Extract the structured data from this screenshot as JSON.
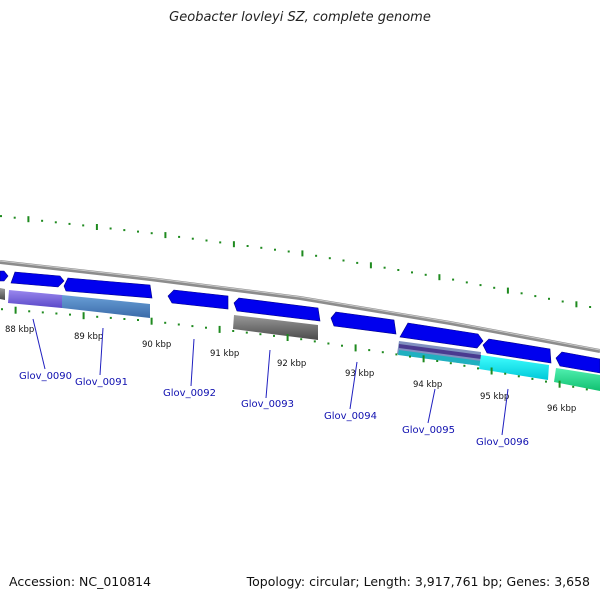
{
  "title": "Geobacter lovleyi SZ, complete genome",
  "footer": {
    "accession": "Accession: NC_010814",
    "topology": "Topology: circular; Length: 3,917,761 bp; Genes: 3,658"
  },
  "colors": {
    "backbone": "#909090",
    "tick": "#1f8a1f",
    "gene_forward": "#0000ee",
    "label": "#1010b0",
    "leader": "#2020c0"
  },
  "scale_labels": [
    "88 kbp",
    "89 kbp",
    "90 kbp",
    "91 kbp",
    "92 kbp",
    "93 kbp",
    "94 kbp",
    "95 kbp",
    "96 kbp"
  ],
  "gene_labels": [
    "Glov_0090",
    "Glov_0091",
    "Glov_0092",
    "Glov_0093",
    "Glov_0094",
    "Glov_0095",
    "Glov_0096"
  ]
}
